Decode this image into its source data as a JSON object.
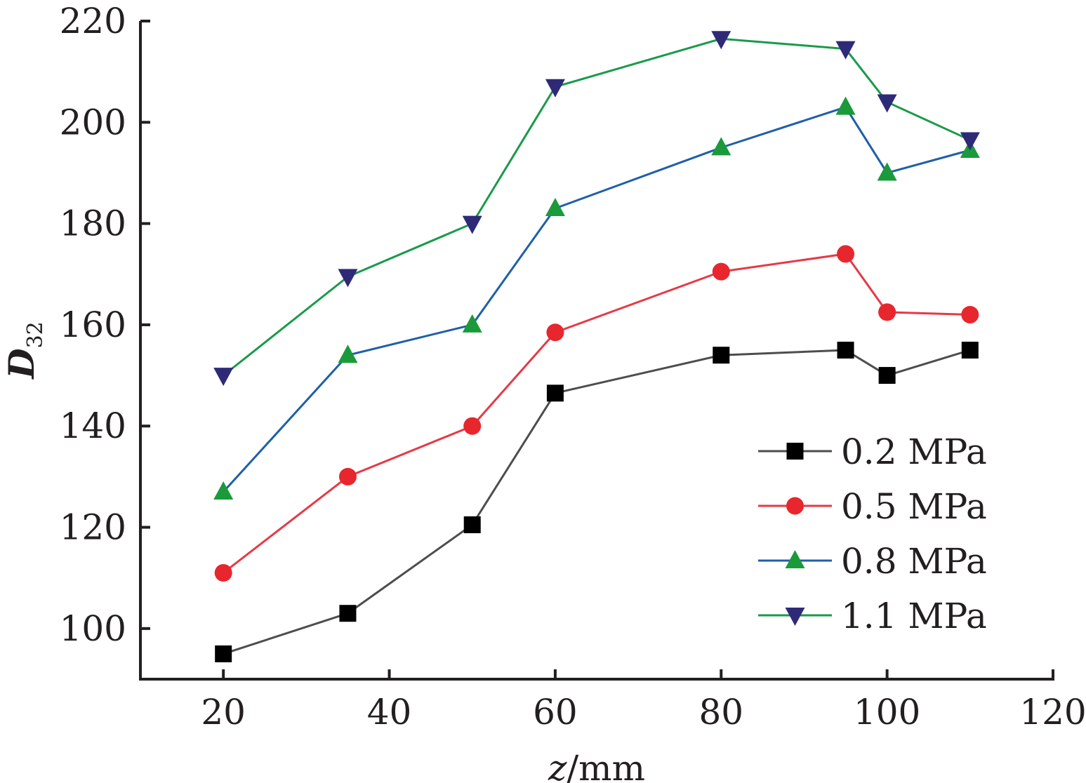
{
  "chart_data": {
    "type": "line",
    "xlabel": {
      "italic": "z",
      "rest": "/mm"
    },
    "ylabel": {
      "italic": "D",
      "sub": "32"
    },
    "xlim": [
      10,
      120
    ],
    "ylim": [
      90,
      220
    ],
    "xticks": [
      20,
      40,
      60,
      80,
      100,
      120
    ],
    "yticks": [
      100,
      120,
      140,
      160,
      180,
      200,
      220
    ],
    "x": [
      20,
      35,
      50,
      60,
      80,
      95,
      100,
      110
    ],
    "series": [
      {
        "name": "0.2 MPa",
        "line_color": "#4d4d4d",
        "marker": "square",
        "marker_color": "#000000",
        "values": [
          95,
          103,
          120.5,
          146.5,
          154,
          155,
          150,
          155
        ]
      },
      {
        "name": "0.5 MPa",
        "line_color": "#e63946",
        "marker": "circle",
        "marker_color": "#e8262d",
        "values": [
          111,
          130,
          140,
          158.5,
          170.5,
          174,
          162.5,
          162
        ]
      },
      {
        "name": "0.8 MPa",
        "line_color": "#1f5fa8",
        "marker": "triangle-up",
        "marker_color": "#1a9a3a",
        "values": [
          127,
          154,
          160,
          183,
          195,
          203,
          190,
          194.5
        ]
      },
      {
        "name": "1.1 MPa",
        "line_color": "#1a9a4a",
        "marker": "triangle-down",
        "marker_color": "#2e2a78",
        "values": [
          150,
          169.5,
          180,
          207,
          216.5,
          214.5,
          204,
          196.5
        ]
      }
    ],
    "legend": "lower-right",
    "grid": false
  }
}
